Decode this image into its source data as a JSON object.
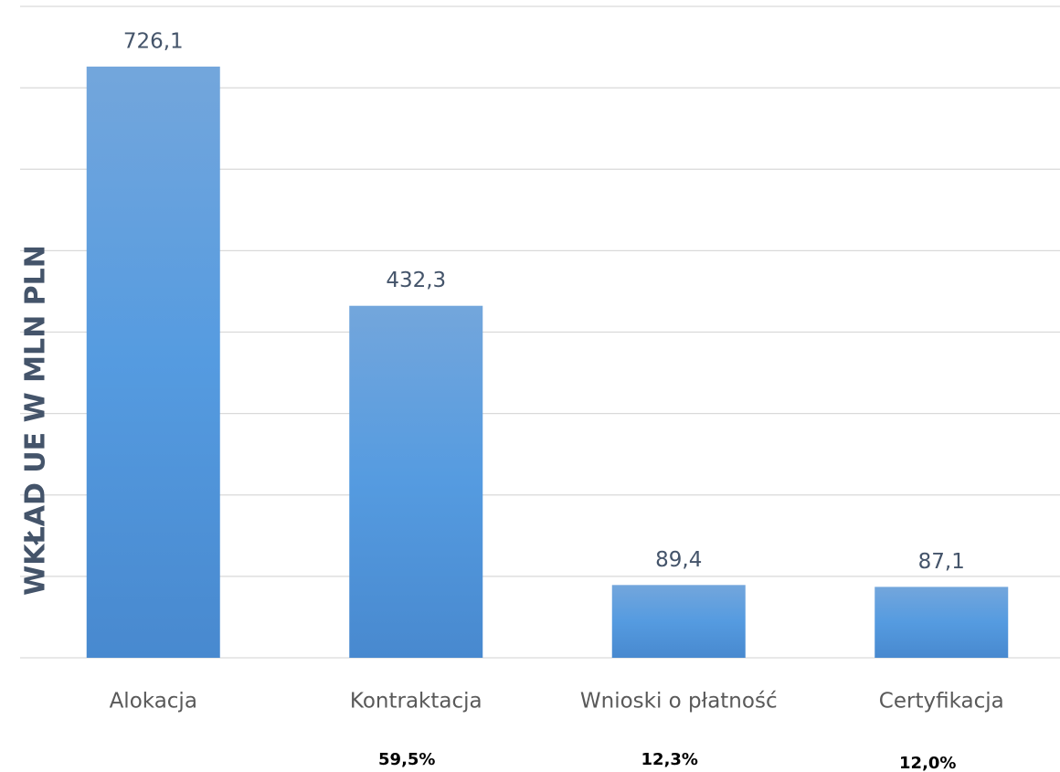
{
  "chart_data": {
    "type": "bar",
    "ylabel": "WKŁAD UE W MLN PLN",
    "categories": [
      "Alokacja",
      "Kontraktacja",
      "Wnioski o płatność",
      "Certyfikacja"
    ],
    "values": [
      726.1,
      432.3,
      89.4,
      87.1
    ],
    "value_labels": [
      "726,1",
      "432,3",
      "89,4",
      "87,1"
    ],
    "annotations": [
      null,
      "59,5%",
      "12,3%",
      "12,0%"
    ],
    "color": "#5b9bd5",
    "ylim": [
      0,
      800
    ],
    "yticks": [
      0,
      100,
      200,
      300,
      400,
      500,
      600,
      700,
      800
    ],
    "grid": true
  }
}
